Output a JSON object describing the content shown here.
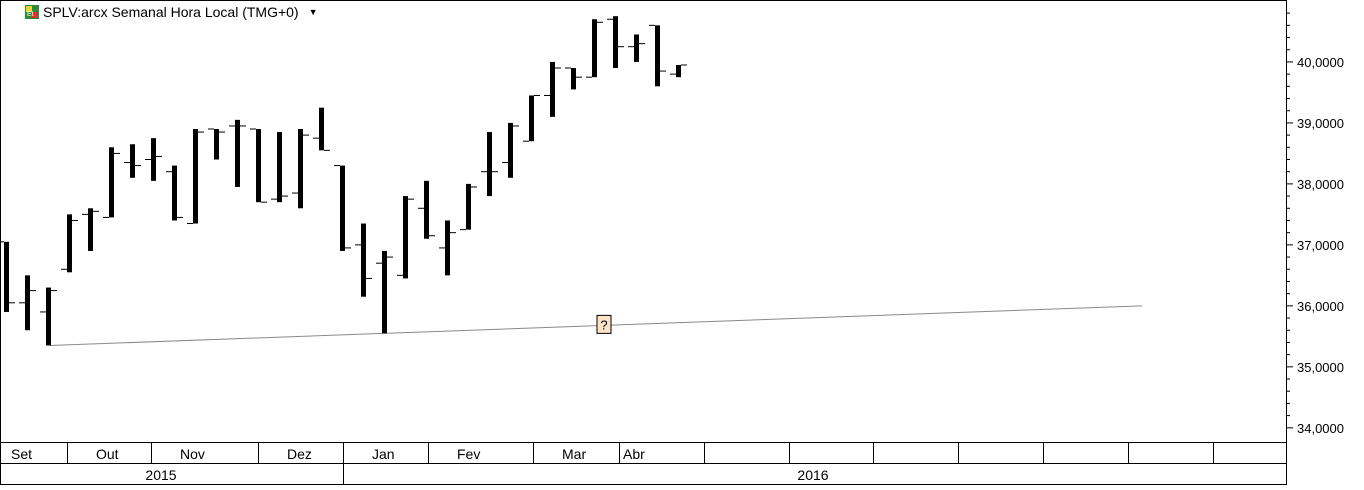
{
  "header": {
    "title": "SPLV:arcx Semanal Hora Local (TMG+0)",
    "icon": "exchange-symbol-icon",
    "dropdown_icon": "caret-down-icon"
  },
  "chart_data": {
    "type": "bar",
    "style": "ohlc-weekly",
    "title": "SPLV:arcx Semanal Hora Local (TMG+0)",
    "ylim": [
      33.8,
      40.95
    ],
    "y_ticks": [
      "34,0000",
      "35,0000",
      "36,0000",
      "37,0000",
      "38,0000",
      "39,0000",
      "40,0000"
    ],
    "x_month_labels": [
      "Set",
      "Out",
      "Nov",
      "Dez",
      "Jan",
      "Fev",
      "Mar",
      "Abr"
    ],
    "x_year_labels": [
      "2015",
      "2016"
    ],
    "bars": [
      {
        "open": 37.05,
        "high": 37.05,
        "low": 35.9,
        "close": 36.05
      },
      {
        "open": 36.05,
        "high": 36.5,
        "low": 35.6,
        "close": 36.25
      },
      {
        "open": 35.9,
        "high": 36.3,
        "low": 35.35,
        "close": 36.25
      },
      {
        "open": 36.6,
        "high": 37.5,
        "low": 36.55,
        "close": 37.4
      },
      {
        "open": 37.5,
        "high": 37.6,
        "low": 36.9,
        "close": 37.55
      },
      {
        "open": 37.45,
        "high": 38.6,
        "low": 37.45,
        "close": 38.5
      },
      {
        "open": 38.35,
        "high": 38.65,
        "low": 38.1,
        "close": 38.3
      },
      {
        "open": 38.4,
        "high": 38.75,
        "low": 38.05,
        "close": 38.45
      },
      {
        "open": 38.2,
        "high": 38.3,
        "low": 37.4,
        "close": 37.45
      },
      {
        "open": 37.35,
        "high": 38.9,
        "low": 37.35,
        "close": 38.85
      },
      {
        "open": 38.9,
        "high": 38.9,
        "low": 38.4,
        "close": 38.85
      },
      {
        "open": 38.95,
        "high": 39.05,
        "low": 37.95,
        "close": 38.95
      },
      {
        "open": 38.9,
        "high": 38.9,
        "low": 37.7,
        "close": 37.7
      },
      {
        "open": 37.75,
        "high": 38.85,
        "low": 37.7,
        "close": 37.8
      },
      {
        "open": 37.85,
        "high": 38.9,
        "low": 37.6,
        "close": 38.8
      },
      {
        "open": 38.75,
        "high": 39.25,
        "low": 38.55,
        "close": 38.55
      },
      {
        "open": 38.3,
        "high": 38.3,
        "low": 36.9,
        "close": 36.95
      },
      {
        "open": 37.0,
        "high": 37.35,
        "low": 36.15,
        "close": 36.45
      },
      {
        "open": 36.7,
        "high": 36.9,
        "low": 35.55,
        "close": 36.8
      },
      {
        "open": 36.5,
        "high": 37.8,
        "low": 36.45,
        "close": 37.75
      },
      {
        "open": 37.6,
        "high": 38.05,
        "low": 37.1,
        "close": 37.15
      },
      {
        "open": 36.95,
        "high": 37.4,
        "low": 36.5,
        "close": 37.2
      },
      {
        "open": 37.25,
        "high": 38.0,
        "low": 37.25,
        "close": 37.95
      },
      {
        "open": 38.2,
        "high": 38.85,
        "low": 37.8,
        "close": 38.2
      },
      {
        "open": 38.35,
        "high": 39.0,
        "low": 38.1,
        "close": 38.95
      },
      {
        "open": 38.7,
        "high": 39.45,
        "low": 38.7,
        "close": 39.45
      },
      {
        "open": 39.45,
        "high": 40.0,
        "low": 39.1,
        "close": 39.9
      },
      {
        "open": 39.9,
        "high": 39.9,
        "low": 39.55,
        "close": 39.75
      },
      {
        "open": 39.75,
        "high": 40.7,
        "low": 39.75,
        "close": 40.65
      },
      {
        "open": 40.7,
        "high": 40.75,
        "low": 39.9,
        "close": 40.25
      },
      {
        "open": 40.25,
        "high": 40.45,
        "low": 40.0,
        "close": 40.3
      },
      {
        "open": 40.6,
        "high": 40.6,
        "low": 39.6,
        "close": 39.85
      },
      {
        "open": 39.8,
        "high": 39.95,
        "low": 39.75,
        "close": 39.95
      }
    ],
    "trendline": {
      "start": {
        "bar": 2,
        "price": 35.35
      },
      "end": {
        "bar": 54,
        "price": 36.0
      },
      "marker_label": "?"
    },
    "grid": false,
    "legend": "none"
  }
}
